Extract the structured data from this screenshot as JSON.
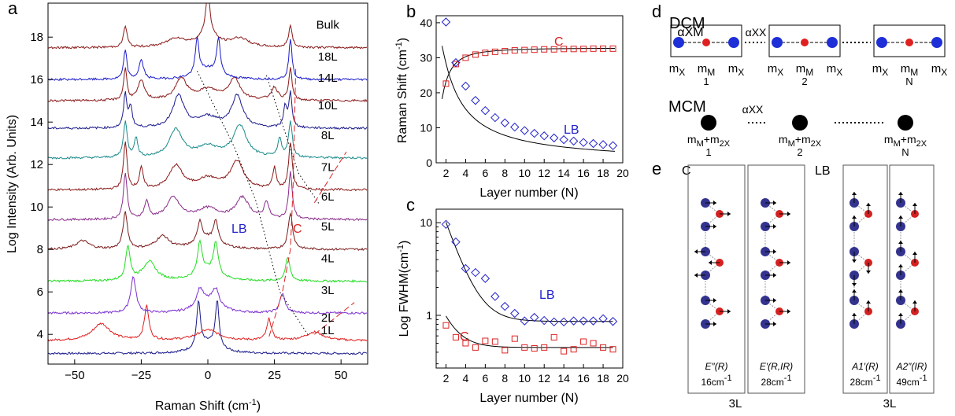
{
  "panel_labels": {
    "a": "a",
    "b": "b",
    "c": "c",
    "d": "d",
    "e": "e"
  },
  "chart_data": [
    {
      "panel": "a",
      "type": "line",
      "xlabel": "Raman Shift (cm-1)",
      "ylabel": "Log Intensity (Arb. Units)",
      "xlim": [
        -60,
        60
      ],
      "ylim": [
        2.6,
        19.6
      ],
      "xticks": [
        -50,
        -25,
        0,
        25,
        50
      ],
      "yticks": [
        4,
        6,
        8,
        10,
        12,
        14,
        16,
        18
      ],
      "annotations": {
        "lb": "LB",
        "c": "C"
      },
      "spectra": [
        {
          "label": "1L",
          "baseline": 3.1,
          "color": "#1a1a8c",
          "peaks": [
            [
              -3.5,
              2.2,
              0.8
            ],
            [
              3.5,
              2.2,
              0.8
            ]
          ]
        },
        {
          "label": "2L",
          "baseline": 3.7,
          "color": "#e02020",
          "peaks": [
            [
              -40,
              0.8,
              4
            ],
            [
              -23,
              1.6,
              1
            ],
            [
              23,
              1.0,
              1
            ],
            [
              40,
              0.4,
              4
            ]
          ]
        },
        {
          "label": "3L",
          "baseline": 5.0,
          "color": "#7b2fd0",
          "peaks": [
            [
              -28,
              1.7,
              1.2
            ],
            [
              28,
              0.9,
              1.2
            ],
            [
              -3,
              0.8,
              1.5
            ],
            [
              3,
              0.8,
              1.5
            ]
          ]
        },
        {
          "label": "4L",
          "baseline": 6.5,
          "color": "#22dd22",
          "peaks": [
            [
              -30,
              1.6,
              1
            ],
            [
              -22,
              0.9,
              3
            ],
            [
              30,
              1.1,
              1
            ],
            [
              -3,
              1.5,
              1
            ],
            [
              3,
              1.5,
              1
            ]
          ]
        },
        {
          "label": "5L",
          "baseline": 8.0,
          "color": "#7a1a1a",
          "peaks": [
            [
              -31,
              1.7,
              1
            ],
            [
              -47,
              0.4,
              3
            ],
            [
              -17,
              0.6,
              3
            ],
            [
              31,
              1.7,
              1
            ],
            [
              -3,
              1.0,
              1
            ],
            [
              3,
              1.0,
              1
            ]
          ]
        },
        {
          "label": "6L",
          "baseline": 9.4,
          "color": "#8a2a8a",
          "peaks": [
            [
              -31,
              2.2,
              0.8
            ],
            [
              -23,
              0.8,
              1
            ],
            [
              -13,
              1.0,
              3
            ],
            [
              13,
              1.0,
              3
            ],
            [
              22,
              0.8,
              1
            ],
            [
              31,
              2.2,
              0.8
            ]
          ]
        },
        {
          "label": "7L",
          "baseline": 10.8,
          "color": "#8a1818",
          "peaks": [
            [
              -31,
              2.2,
              0.8
            ],
            [
              -25,
              1.0,
              0.8
            ],
            [
              -12,
              1.1,
              3
            ],
            [
              11,
              1.3,
              3
            ],
            [
              25,
              1.0,
              0.8
            ],
            [
              31,
              2.2,
              0.8
            ]
          ]
        },
        {
          "label": "8L",
          "baseline": 12.3,
          "color": "#1a8a8a",
          "peaks": [
            [
              -31,
              1.7,
              0.8
            ],
            [
              -27,
              0.9,
              0.8
            ],
            [
              -12,
              1.3,
              3
            ],
            [
              12,
              1.5,
              3
            ],
            [
              27,
              0.9,
              0.8
            ],
            [
              31,
              1.7,
              0.8
            ]
          ]
        },
        {
          "label": "10L",
          "baseline": 13.7,
          "color": "#1a1a8c",
          "peaks": [
            [
              -31,
              1.6,
              0.7
            ],
            [
              -29,
              1.0,
              0.7
            ],
            [
              -11,
              1.5,
              2.5
            ],
            [
              11,
              1.5,
              2.5
            ],
            [
              29,
              1.0,
              0.7
            ],
            [
              31,
              1.6,
              0.7
            ]
          ]
        },
        {
          "label": "14L",
          "baseline": 15.0,
          "color": "#8a1818",
          "peaks": [
            [
              -31,
              1.5,
              0.7
            ],
            [
              -25,
              0.9,
              1.5
            ],
            [
              -10,
              1.0,
              2.5
            ],
            [
              10,
              1.0,
              2.5
            ],
            [
              25,
              0.6,
              1.5
            ],
            [
              31,
              1.5,
              0.7
            ]
          ]
        },
        {
          "label": "18L",
          "baseline": 16.0,
          "color": "#1a1acc",
          "peaks": [
            [
              -31,
              1.4,
              0.7
            ],
            [
              -25,
              0.9,
              1
            ],
            [
              -4,
              1.7,
              0.8
            ],
            [
              4,
              1.7,
              0.8
            ],
            [
              31,
              1.9,
              0.7
            ]
          ]
        },
        {
          "label": "Bulk",
          "baseline": 17.5,
          "color": "#8a1818",
          "peaks": [
            [
              -31,
              1.0,
              0.8
            ],
            [
              -12,
              0.4,
              4
            ],
            [
              12,
              0.4,
              4
            ],
            [
              31,
              1.0,
              0.8
            ],
            [
              0,
              2.0,
              1.0
            ]
          ]
        }
      ]
    },
    {
      "panel": "b",
      "type": "scatter",
      "xlabel": "Layer number (N)",
      "ylabel": "Raman Shift (cm-1)",
      "xlim": [
        1,
        20
      ],
      "ylim": [
        0,
        42
      ],
      "xticks": [
        2,
        4,
        6,
        8,
        10,
        12,
        14,
        16,
        18,
        20
      ],
      "yticks": [
        0,
        10,
        20,
        30,
        40
      ],
      "series": [
        {
          "name": "C",
          "color": "#dd2222",
          "marker": "square",
          "x": [
            2,
            3,
            4,
            5,
            6,
            7,
            8,
            9,
            10,
            11,
            12,
            13,
            14,
            15,
            16,
            17,
            18,
            19
          ],
          "y": [
            22.6,
            28.2,
            30.0,
            30.9,
            31.4,
            31.7,
            31.9,
            32.1,
            32.2,
            32.3,
            32.4,
            32.4,
            32.5,
            32.5,
            32.5,
            32.6,
            32.6,
            32.6
          ]
        },
        {
          "name": "LB",
          "color": "#2222cc",
          "marker": "diamond",
          "x": [
            2,
            3,
            4,
            5,
            6,
            7,
            8,
            9,
            10,
            11,
            12,
            13,
            14,
            15,
            16,
            17,
            18,
            19
          ],
          "y": [
            40.2,
            28.6,
            21.9,
            17.8,
            14.9,
            12.9,
            11.4,
            10.2,
            9.2,
            8.4,
            7.7,
            7.1,
            6.6,
            6.2,
            5.8,
            5.5,
            5.2,
            4.9
          ]
        }
      ]
    },
    {
      "panel": "c",
      "type": "scatter",
      "xlabel": "Layer number (N)",
      "ylabel": "Log FWHM(cm-1)",
      "scale_y": "log",
      "xlim": [
        1,
        20
      ],
      "ylim": [
        0.27,
        14
      ],
      "xticks": [
        2,
        4,
        6,
        8,
        10,
        12,
        14,
        16,
        18,
        20
      ],
      "yticks": [
        1,
        10
      ],
      "series": [
        {
          "name": "LB",
          "color": "#2222cc",
          "marker": "diamond",
          "x": [
            2,
            3,
            4,
            5,
            6,
            7,
            8,
            9,
            10,
            11,
            12,
            13,
            14,
            15,
            16,
            17,
            18,
            19
          ],
          "y": [
            9.6,
            6.2,
            3.2,
            2.9,
            2.5,
            1.6,
            1.25,
            1.05,
            0.87,
            0.95,
            0.88,
            0.85,
            0.85,
            0.87,
            0.87,
            0.87,
            0.92,
            0.86
          ]
        },
        {
          "name": "C",
          "color": "#dd2222",
          "marker": "square",
          "x": [
            2,
            3,
            4,
            5,
            6,
            7,
            8,
            9,
            10,
            11,
            12,
            13,
            14,
            15,
            16,
            17,
            18,
            19
          ],
          "y": [
            0.78,
            0.58,
            0.5,
            0.45,
            0.53,
            0.52,
            0.42,
            0.56,
            0.45,
            0.44,
            0.45,
            0.58,
            0.41,
            0.43,
            0.52,
            0.5,
            0.45,
            0.43
          ]
        }
      ]
    }
  ],
  "spring_model": {
    "dcm_title": "DCM",
    "mcm_title": "MCM",
    "alpha_xm": "αXM",
    "alpha_xx": "αXX",
    "dcm_groups": [
      {
        "masses": [
          "mX",
          "mM",
          "mX"
        ],
        "index": "1"
      },
      {
        "masses": [
          "mX",
          "mM",
          "mX"
        ],
        "index": "2"
      },
      {
        "masses": [
          "mX",
          "mM",
          "mX"
        ],
        "index": "N"
      }
    ],
    "mcm_groups": [
      {
        "mass": "mM+m2X",
        "index": "1"
      },
      {
        "mass": "mM+m2X",
        "index": "2"
      },
      {
        "mass": "mM+m2X",
        "index": "N"
      }
    ],
    "colors": {
      "metal": "#e02020",
      "chalcogen": "#1f2fd8",
      "mcm_ball": "#000000"
    }
  },
  "modes": {
    "c_label": "C",
    "lb_label": "LB",
    "c_panels": [
      {
        "symmetry": "E″(R)",
        "freq": "16cm-1"
      },
      {
        "symmetry": "E′(R,IR)",
        "freq": "28cm-1"
      }
    ],
    "lb_panels": [
      {
        "symmetry": "A1′(R)",
        "freq": "28cm-1"
      },
      {
        "symmetry": "A2″(IR)",
        "freq": "49cm-1"
      }
    ],
    "layer_label": "3L",
    "colors": {
      "metal": "#d42020",
      "chalcogen": "#33338f"
    }
  }
}
